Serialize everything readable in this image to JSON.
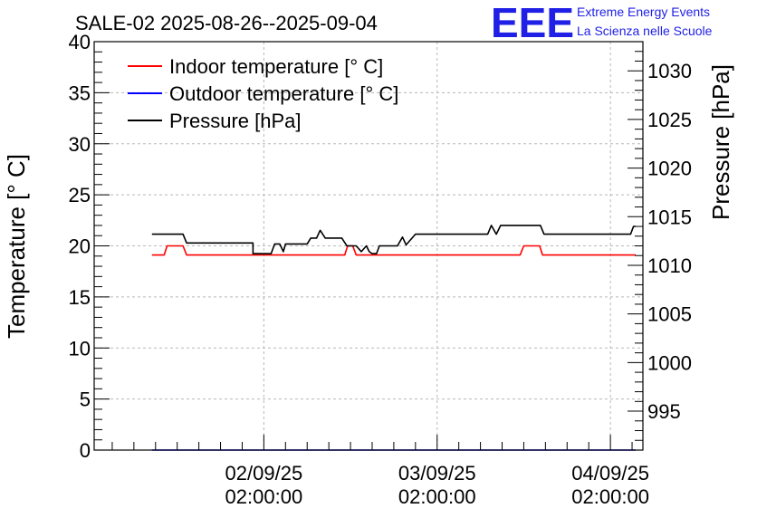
{
  "chart_data": {
    "type": "line",
    "title": "SALE-02 2025-08-26--2025-09-04",
    "logo": {
      "text": "EEE",
      "line1": "Extreme Energy Events",
      "line2": "La Scienza nelle Scuole",
      "color": "#1f1fe6"
    },
    "ylabel_left": "Temperature [° C]",
    "ylabel_right": "Pressure [hPa]",
    "ylim_left": [
      0,
      40
    ],
    "yticks_left": [
      0,
      5,
      10,
      15,
      20,
      25,
      30,
      35,
      40
    ],
    "ylim_right": [
      991,
      1033
    ],
    "yticks_right": [
      995,
      1000,
      1005,
      1010,
      1015,
      1020,
      1025,
      1030
    ],
    "xlim_hours": [
      -23.5,
      52.5
    ],
    "xticks": [
      {
        "hour": 0,
        "date": "02/09/25",
        "time": "02:00:00"
      },
      {
        "hour": 24,
        "date": "03/09/25",
        "time": "02:00:00"
      },
      {
        "hour": 48,
        "date": "04/09/25",
        "time": "02:00:00"
      }
    ],
    "grid": true,
    "legend_position": "top-left",
    "series": [
      {
        "name": "Indoor temperature [° C]",
        "axis": "left",
        "color": "#ff0000",
        "x": [
          -15.5,
          -13.8,
          -13.4,
          -11.2,
          -10.7,
          -8.0,
          -5.0,
          -2.0,
          1.0,
          4.0,
          7.0,
          10.0,
          11.2,
          11.6,
          12.3,
          12.8,
          15.0,
          18.0,
          21.0,
          24.0,
          27.0,
          30.0,
          33.0,
          35.5,
          36.0,
          38.2,
          38.6,
          41.5,
          45.0,
          48.0,
          51.5
        ],
        "y": [
          19.1,
          19.1,
          20.0,
          20.0,
          19.1,
          19.1,
          19.1,
          19.1,
          19.1,
          19.1,
          19.1,
          19.1,
          19.1,
          20.0,
          20.0,
          19.1,
          19.1,
          19.1,
          19.1,
          19.1,
          19.1,
          19.1,
          19.1,
          19.1,
          20.0,
          20.0,
          19.1,
          19.1,
          19.1,
          19.1,
          19.1
        ]
      },
      {
        "name": "Outdoor temperature [° C]",
        "axis": "left",
        "color": "#0000ff",
        "x": [
          -15.5,
          51.5
        ],
        "y": [
          0,
          0
        ]
      },
      {
        "name": "Pressure [hPa]",
        "axis": "right",
        "color": "#000000",
        "x": [
          -15.5,
          -11.2,
          -10.7,
          -1.5,
          -1.5,
          1.0,
          1.5,
          2.2,
          2.7,
          3.0,
          6.0,
          6.5,
          7.3,
          7.8,
          8.5,
          10.8,
          11.5,
          12.8,
          13.5,
          14.2,
          14.6,
          15.0,
          15.6,
          16.0,
          16.5,
          17.2,
          18.5,
          19.2,
          19.7,
          21.0,
          25.0,
          28.0,
          30.0,
          31.0,
          31.5,
          32.2,
          32.8,
          34.0,
          37.0,
          38.3,
          38.8,
          41.0,
          44.0,
          45.0,
          47.5,
          50.8,
          51.2,
          51.5
        ],
        "y": [
          1013.2,
          1013.2,
          1012.3,
          1012.3,
          1011.2,
          1011.2,
          1012.2,
          1012.2,
          1011.4,
          1012.2,
          1012.2,
          1012.8,
          1012.8,
          1013.6,
          1012.8,
          1012.8,
          1012.0,
          1012.0,
          1011.4,
          1012.0,
          1011.4,
          1011.2,
          1011.2,
          1012.0,
          1012.0,
          1012.0,
          1012.0,
          1012.9,
          1012.1,
          1013.2,
          1013.2,
          1013.2,
          1013.2,
          1013.2,
          1014.1,
          1013.2,
          1014.1,
          1014.1,
          1014.1,
          1014.1,
          1013.2,
          1013.2,
          1013.2,
          1013.2,
          1013.2,
          1013.2,
          1014.0,
          1014.0
        ]
      }
    ]
  }
}
